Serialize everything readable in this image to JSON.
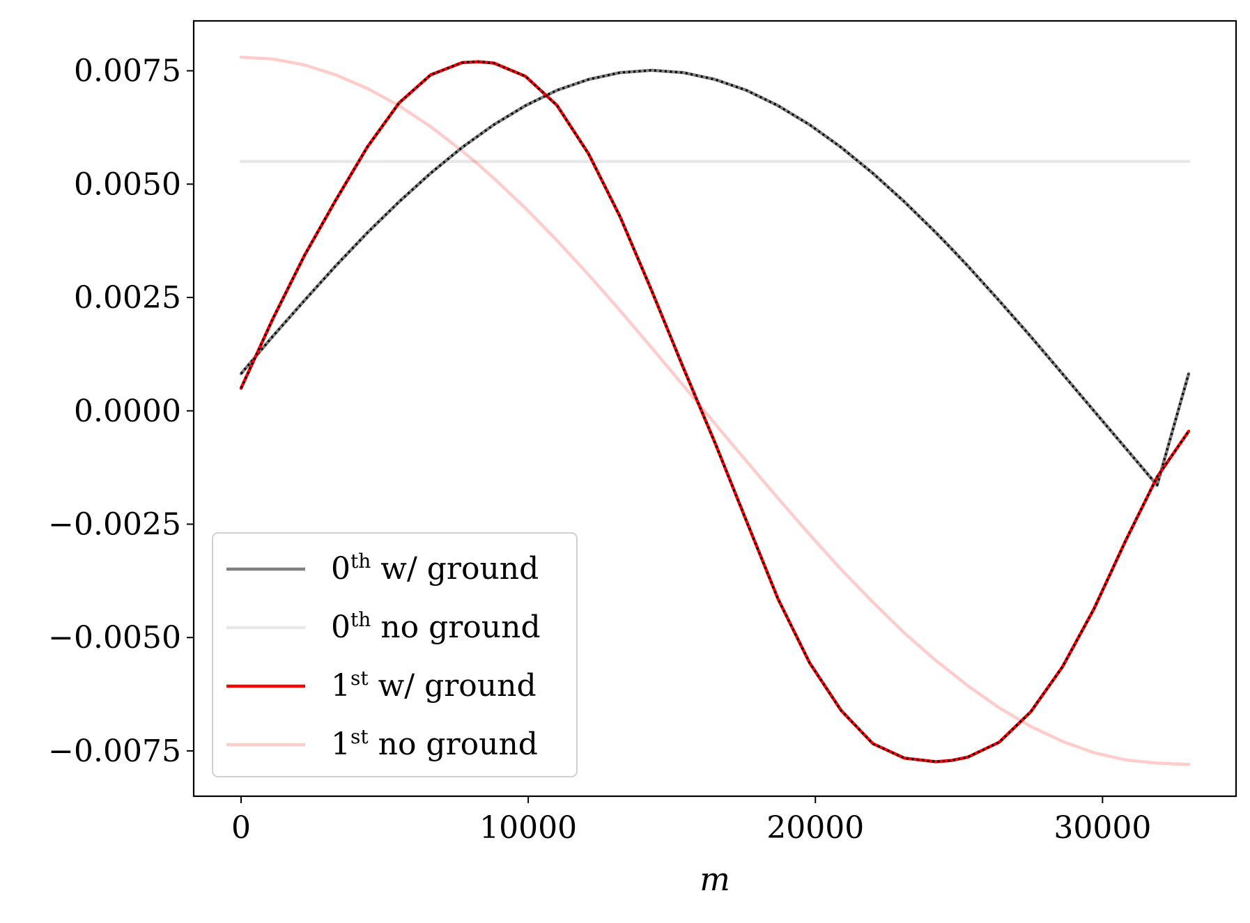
{
  "chart_data": {
    "type": "line",
    "title": "",
    "xlabel": "m",
    "ylabel": "",
    "xlim": [
      -1650,
      34650
    ],
    "ylim": [
      -0.0085,
      0.0086
    ],
    "xticks": [
      0,
      10000,
      20000,
      30000
    ],
    "xtick_labels": [
      "0",
      "10000",
      "20000",
      "30000"
    ],
    "yticks": [
      0.0075,
      0.005,
      0.0025,
      0.0,
      -0.0025,
      -0.005,
      -0.0075
    ],
    "ytick_labels": [
      "0.0075",
      "0.0050",
      "0.0025",
      "0.0000",
      "−0.0025",
      "−0.0050",
      "−0.0075"
    ],
    "grid": false,
    "legend_position": "lower-left",
    "x": [
      0,
      1100,
      2200,
      3300,
      4400,
      5500,
      6600,
      7700,
      8250,
      8800,
      9900,
      11000,
      12100,
      13200,
      14300,
      15400,
      16500,
      17600,
      18700,
      19800,
      20900,
      22000,
      23100,
      24200,
      24750,
      25300,
      26400,
      27500,
      28600,
      29700,
      30800,
      31900,
      33000
    ],
    "series": [
      {
        "name": "0th w/ ground",
        "sup": "th",
        "color": "#808080",
        "opacity": 1,
        "overlay_dotted": true,
        "values": [
          0.00082,
          0.00164,
          0.00243,
          0.0032,
          0.00393,
          0.00461,
          0.00524,
          0.00581,
          0.00606,
          0.00631,
          0.00673,
          0.00707,
          0.00731,
          0.00746,
          0.00751,
          0.00746,
          0.00731,
          0.00707,
          0.00673,
          0.00631,
          0.00581,
          0.00524,
          0.00461,
          0.00393,
          0.00357,
          0.0032,
          0.00243,
          0.00164,
          0.00082,
          0.0,
          -0.00082,
          -0.00164,
          0.00082
        ]
      },
      {
        "name": "0th no ground",
        "sup": "th",
        "color": "#d3d3d3",
        "opacity": 0.55,
        "overlay_dotted": false,
        "values": [
          0.0055,
          0.0055,
          0.0055,
          0.0055,
          0.0055,
          0.0055,
          0.0055,
          0.0055,
          0.0055,
          0.0055,
          0.0055,
          0.0055,
          0.0055,
          0.0055,
          0.0055,
          0.0055,
          0.0055,
          0.0055,
          0.0055,
          0.0055,
          0.0055,
          0.0055,
          0.0055,
          0.0055,
          0.0055,
          0.0055,
          0.0055,
          0.0055,
          0.0055,
          0.0055,
          0.0055,
          0.0055,
          0.0055
        ]
      },
      {
        "name": "1st w/ ground",
        "sup": "st",
        "color": "#ff0000",
        "opacity": 1,
        "overlay_dotted": true,
        "values": [
          0.0005,
          0.00202,
          0.00342,
          0.00465,
          0.00582,
          0.00679,
          0.00741,
          0.00768,
          0.0077,
          0.00767,
          0.00738,
          0.00674,
          0.00567,
          0.00428,
          0.00265,
          0.00095,
          -0.0007,
          -0.00243,
          -0.00415,
          -0.00556,
          -0.00661,
          -0.00734,
          -0.00766,
          -0.00774,
          -0.00771,
          -0.00764,
          -0.00731,
          -0.00664,
          -0.00565,
          -0.00437,
          -0.00287,
          -0.00146,
          -0.00045
        ]
      },
      {
        "name": "1st no ground",
        "sup": "st",
        "color": "#ff0000",
        "opacity": 0.2,
        "overlay_dotted": false,
        "values": [
          0.0078,
          0.00776,
          0.00763,
          0.00741,
          0.00711,
          0.00673,
          0.00627,
          0.00573,
          0.00544,
          0.00513,
          0.00447,
          0.00376,
          0.003,
          0.00221,
          0.00139,
          0.00056,
          -0.00028,
          -0.00111,
          -0.00193,
          -0.00273,
          -0.0035,
          -0.00422,
          -0.0049,
          -0.00551,
          -0.00578,
          -0.00606,
          -0.00655,
          -0.00696,
          -0.00729,
          -0.00754,
          -0.0077,
          -0.00777,
          -0.0078
        ]
      }
    ]
  }
}
